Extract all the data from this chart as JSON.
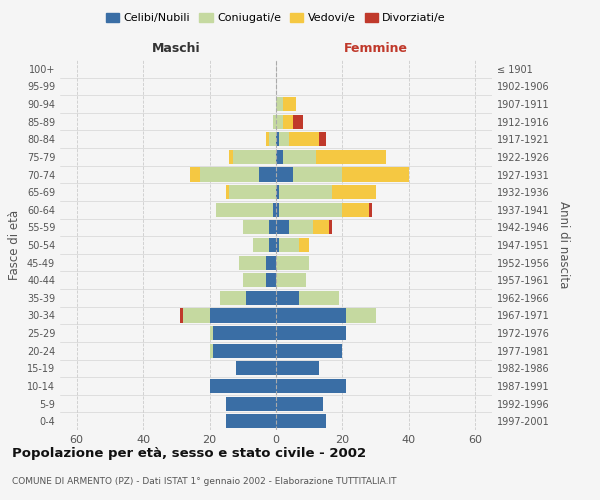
{
  "age_groups": [
    "0-4",
    "5-9",
    "10-14",
    "15-19",
    "20-24",
    "25-29",
    "30-34",
    "35-39",
    "40-44",
    "45-49",
    "50-54",
    "55-59",
    "60-64",
    "65-69",
    "70-74",
    "75-79",
    "80-84",
    "85-89",
    "90-94",
    "95-99",
    "100+"
  ],
  "birth_years": [
    "1997-2001",
    "1992-1996",
    "1987-1991",
    "1982-1986",
    "1977-1981",
    "1972-1976",
    "1967-1971",
    "1962-1966",
    "1957-1961",
    "1952-1956",
    "1947-1951",
    "1942-1946",
    "1937-1941",
    "1932-1936",
    "1927-1931",
    "1922-1926",
    "1917-1921",
    "1912-1916",
    "1907-1911",
    "1902-1906",
    "≤ 1901"
  ],
  "males": {
    "celibi": [
      15,
      15,
      20,
      12,
      19,
      19,
      20,
      9,
      3,
      3,
      2,
      2,
      1,
      0,
      5,
      0,
      0,
      0,
      0,
      0,
      0
    ],
    "coniugati": [
      0,
      0,
      0,
      0,
      1,
      1,
      8,
      8,
      7,
      8,
      5,
      8,
      17,
      14,
      18,
      13,
      2,
      1,
      0,
      0,
      0
    ],
    "vedovi": [
      0,
      0,
      0,
      0,
      0,
      0,
      0,
      0,
      0,
      0,
      0,
      0,
      0,
      1,
      3,
      1,
      1,
      0,
      0,
      0,
      0
    ],
    "divorziati": [
      0,
      0,
      0,
      0,
      0,
      0,
      1,
      0,
      0,
      0,
      0,
      0,
      0,
      0,
      0,
      0,
      0,
      0,
      0,
      0,
      0
    ]
  },
  "females": {
    "nubili": [
      15,
      14,
      21,
      13,
      20,
      21,
      21,
      7,
      0,
      0,
      1,
      4,
      1,
      1,
      5,
      2,
      1,
      0,
      0,
      0,
      0
    ],
    "coniugate": [
      0,
      0,
      0,
      0,
      0,
      0,
      9,
      12,
      9,
      10,
      6,
      7,
      19,
      16,
      15,
      10,
      3,
      2,
      2,
      0,
      0
    ],
    "vedove": [
      0,
      0,
      0,
      0,
      0,
      0,
      0,
      0,
      0,
      0,
      3,
      5,
      8,
      13,
      20,
      21,
      9,
      3,
      4,
      0,
      0
    ],
    "divorziate": [
      0,
      0,
      0,
      0,
      0,
      0,
      0,
      0,
      0,
      0,
      0,
      1,
      1,
      0,
      0,
      0,
      2,
      3,
      0,
      0,
      0
    ]
  },
  "colors": {
    "celibi": "#3a6ea5",
    "coniugati": "#c5d9a0",
    "vedovi": "#f5c842",
    "divorziati": "#c0392b"
  },
  "legend_labels": [
    "Celibi/Nubili",
    "Coniugati/e",
    "Vedovi/e",
    "Divorziati/e"
  ],
  "title": "Popolazione per età, sesso e stato civile - 2002",
  "subtitle": "COMUNE DI ARMENTO (PZ) - Dati ISTAT 1° gennaio 2002 - Elaborazione TUTTITALIA.IT",
  "ylabel": "Fasce di età",
  "ylabel_right": "Anni di nascita",
  "xlabel_left": "Maschi",
  "xlabel_right": "Femmine",
  "xlim": 65,
  "background_color": "#f5f5f5"
}
